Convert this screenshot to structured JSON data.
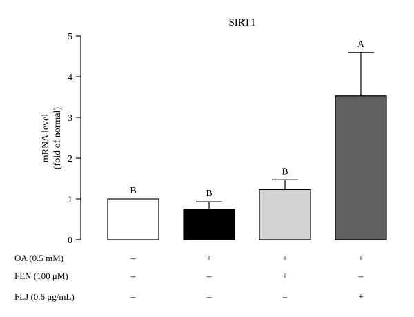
{
  "chart_data": {
    "type": "bar",
    "title": "SIRT1",
    "ylabel_lines": [
      "mRNA level",
      "(fold of normal)"
    ],
    "ylim": [
      0,
      5
    ],
    "yticks": [
      "0",
      "1",
      "2",
      "3",
      "4",
      "5"
    ],
    "grid": false,
    "groups": [
      {
        "value": 1.0,
        "error": 0,
        "letter": "B",
        "color": "#ffffff",
        "treatments": [
          "–",
          "–",
          "–"
        ]
      },
      {
        "value": 0.75,
        "error": 0.18,
        "letter": "B",
        "color": "#000000",
        "treatments": [
          "+",
          "–",
          "–"
        ]
      },
      {
        "value": 1.23,
        "error": 0.24,
        "letter": "B",
        "color": "#d3d3d3",
        "treatments": [
          "+",
          "+",
          "–"
        ]
      },
      {
        "value": 3.53,
        "error": 1.06,
        "letter": "A",
        "color": "#5f6060",
        "treatments": [
          "+",
          "–",
          "+"
        ]
      }
    ],
    "treatment_labels": [
      "OA (0.5 mM)",
      "FEN (100 μM)",
      "FLJ (0.6 μg/mL)"
    ]
  }
}
